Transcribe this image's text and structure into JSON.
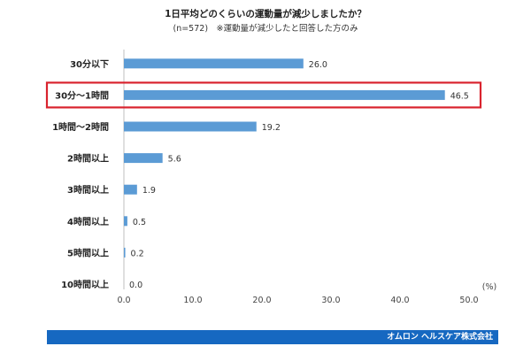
{
  "header": {
    "title": "1日平均どのくらいの運動量が減少しましたか？",
    "subtitle": "(n=572)　※運動量が減少したと回答した方のみ"
  },
  "footer": {
    "company": "オムロン ヘルスケア株式会社"
  },
  "colors": {
    "bar": "#5b9bd5",
    "highlight_border": "#d9232e",
    "footer_bg": "#1668c1"
  },
  "chart_data": {
    "type": "bar",
    "orientation": "horizontal",
    "categories": [
      "30分以下",
      "30分〜1時間",
      "1時間〜2時間",
      "2時間以上",
      "3時間以上",
      "4時間以上",
      "5時間以上",
      "10時間以上"
    ],
    "values": [
      26.0,
      46.5,
      19.2,
      5.6,
      1.9,
      0.5,
      0.2,
      0.0
    ],
    "value_labels": [
      "26.0",
      "46.5",
      "19.2",
      "5.6",
      "1.9",
      "0.5",
      "0.2",
      "0.0"
    ],
    "xlim": [
      0,
      50
    ],
    "x_ticks": [
      "0.0",
      "10.0",
      "20.0",
      "30.0",
      "40.0",
      "50.0"
    ],
    "x_unit": "(%)",
    "highlighted_category": "30分〜1時間",
    "grid": false,
    "legend": "none"
  }
}
